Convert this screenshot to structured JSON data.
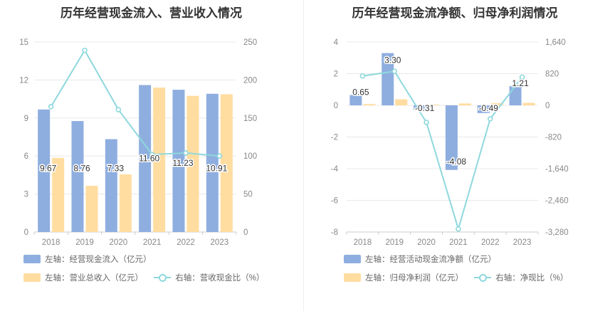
{
  "charts": [
    {
      "title": "历年经营现金流入、营业收入情况",
      "legend": [
        {
          "label": "左轴：经营现金流入（亿元）",
          "kind": "bar",
          "color": "#8eaedf"
        },
        {
          "label": "左轴：营业总收入（亿元）",
          "kind": "bar",
          "color": "#ffdda0"
        },
        {
          "label": "右轴：营收现金比（%）",
          "kind": "line",
          "color": "#8ed8dd"
        }
      ]
    },
    {
      "title": "历年经营现金流净额、归母净利润情况",
      "legend": [
        {
          "label": "左轴：经营活动现金流净额（亿元）",
          "kind": "bar",
          "color": "#8eaedf"
        },
        {
          "label": "左轴：归母净利润（亿元）",
          "kind": "bar",
          "color": "#ffdda0"
        },
        {
          "label": "右轴：净现比（%）",
          "kind": "line",
          "color": "#8ed8dd"
        }
      ]
    }
  ],
  "chart_data": [
    {
      "type": "bar",
      "title": "历年经营现金流入、营业收入情况",
      "categories": [
        "2018",
        "2019",
        "2020",
        "2021",
        "2022",
        "2023"
      ],
      "y_left": {
        "min": 0,
        "max": 15,
        "ticks": [
          0,
          3,
          6,
          9,
          12,
          15
        ],
        "tick_labels": [
          "0",
          "3",
          "6",
          "9",
          "12",
          "15"
        ]
      },
      "y_right": {
        "min": 0,
        "max": 250,
        "ticks": [
          0,
          50,
          100,
          150,
          200,
          250
        ],
        "tick_labels": [
          "0",
          "50",
          "100",
          "150",
          "200",
          "250"
        ]
      },
      "series": [
        {
          "name": "左轴：经营现金流入（亿元）",
          "type": "bar",
          "axis": "left",
          "color": "#8eaedf",
          "values": [
            9.67,
            8.76,
            7.33,
            11.6,
            11.23,
            10.91
          ],
          "data_labels": [
            "9.67",
            "8.76",
            "7.33",
            "11.60",
            "11.23",
            "10.91"
          ]
        },
        {
          "name": "左轴：营业总收入（亿元）",
          "type": "bar",
          "axis": "left",
          "color": "#ffdda0",
          "values": [
            5.85,
            3.65,
            4.55,
            11.4,
            10.75,
            10.87
          ]
        },
        {
          "name": "右轴：营收现金比（%）",
          "type": "line",
          "axis": "right",
          "color": "#8ed8dd",
          "values": [
            165,
            239,
            161,
            102,
            104,
            100
          ]
        }
      ]
    },
    {
      "type": "bar",
      "title": "历年经营现金流净额、归母净利润情况",
      "categories": [
        "2018",
        "2019",
        "2020",
        "2021",
        "2022",
        "2023"
      ],
      "y_left": {
        "min": -8,
        "max": 4,
        "ticks": [
          -8,
          -6,
          -4,
          -2,
          0,
          2,
          4
        ],
        "tick_labels": [
          "-8",
          "-6",
          "-4",
          "-2",
          "0",
          "2",
          "4"
        ]
      },
      "y_right": {
        "min": -3280,
        "max": 1640,
        "ticks": [
          -3280,
          -2460,
          -1640,
          -820,
          0,
          820,
          1640
        ],
        "tick_labels": [
          "-3,280",
          "-2,460",
          "-1,640",
          "-820",
          "0",
          "820",
          "1,640"
        ]
      },
      "series": [
        {
          "name": "左轴：经营活动现金流净额（亿元）",
          "type": "bar",
          "axis": "left",
          "color": "#8eaedf",
          "values": [
            0.65,
            3.3,
            -0.31,
            -4.08,
            -0.49,
            1.21
          ],
          "data_labels": [
            "0.65",
            "3.30",
            "-0.31",
            "-4.08",
            "-0.49",
            "1.21"
          ]
        },
        {
          "name": "左轴：归母净利润（亿元）",
          "type": "bar",
          "axis": "left",
          "color": "#ffdda0",
          "values": [
            0.08,
            0.38,
            0.05,
            0.12,
            0.14,
            0.16
          ]
        },
        {
          "name": "右轴：净现比（%）",
          "type": "line",
          "axis": "right",
          "color": "#8ed8dd",
          "values": [
            760,
            880,
            -440,
            -3200,
            -350,
            730
          ]
        }
      ]
    }
  ]
}
